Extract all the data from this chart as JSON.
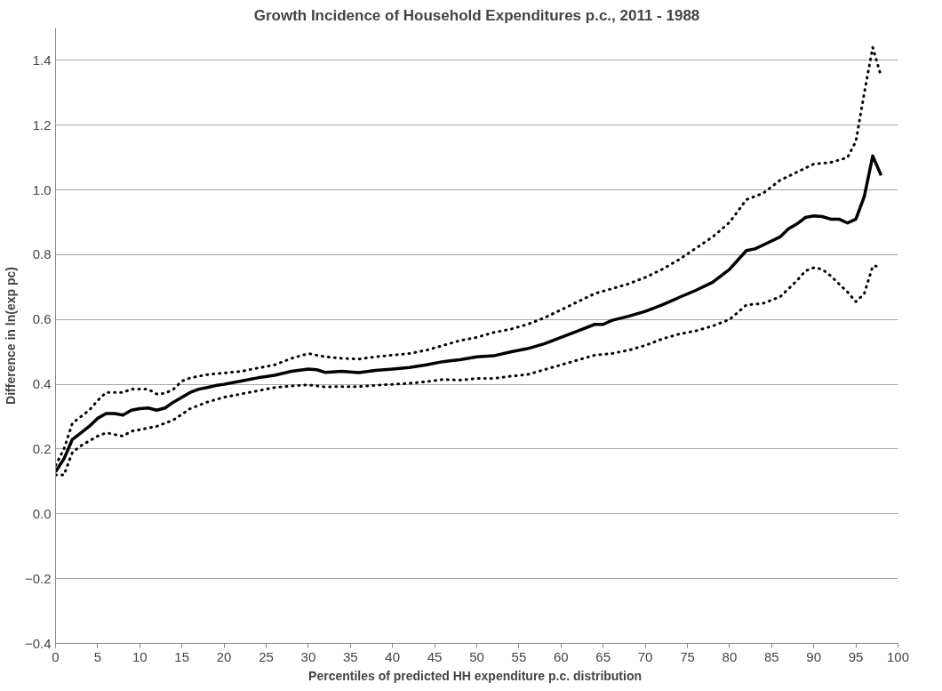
{
  "chart_data": {
    "type": "line",
    "title": "Growth Incidence of Household Expenditures p.c., 2011 - 1988",
    "xlabel": "Percentiles of  predicted HH expenditure p.c. distribution",
    "ylabel": "Difference in ln(exp pc)",
    "xlim": [
      0,
      100
    ],
    "xticks": [
      0,
      5,
      10,
      15,
      20,
      25,
      30,
      35,
      40,
      45,
      50,
      55,
      60,
      65,
      70,
      75,
      80,
      85,
      90,
      95,
      100
    ],
    "ylim": [
      -0.4,
      1.5
    ],
    "yticks": [
      -0.4,
      -0.2,
      {
        "value": 0,
        "label": "0.0"
      },
      0.2,
      0.4,
      0.6,
      0.8,
      {
        "value": 1,
        "label": "1.0"
      },
      1.2,
      1.4
    ],
    "grid": "y",
    "marker": "none",
    "series": [
      {
        "color": "#000000",
        "line_style": "dotted",
        "x": [
          0,
          1,
          2,
          3,
          4,
          5,
          6,
          7,
          8,
          9,
          10,
          11,
          12,
          13,
          14,
          15,
          16,
          18,
          20,
          22,
          24,
          26,
          28,
          30,
          31,
          32,
          34,
          36,
          38,
          40,
          42,
          44,
          46,
          48,
          50,
          52,
          54,
          56,
          58,
          60,
          62,
          64,
          66,
          68,
          70,
          72,
          74,
          76,
          78,
          80,
          82,
          84,
          86,
          88,
          90,
          92,
          94,
          95,
          96,
          97,
          98
        ],
        "values": [
          0.15,
          0.2,
          0.28,
          0.3,
          0.32,
          0.35,
          0.375,
          0.375,
          0.375,
          0.385,
          0.385,
          0.385,
          0.37,
          0.372,
          0.385,
          0.41,
          0.42,
          0.43,
          0.435,
          0.44,
          0.45,
          0.46,
          0.48,
          0.495,
          0.49,
          0.485,
          0.48,
          0.478,
          0.485,
          0.49,
          0.495,
          0.505,
          0.52,
          0.535,
          0.545,
          0.56,
          0.57,
          0.585,
          0.605,
          0.63,
          0.655,
          0.68,
          0.695,
          0.71,
          0.73,
          0.755,
          0.785,
          0.82,
          0.855,
          0.9,
          0.97,
          0.99,
          1.03,
          1.055,
          1.08,
          1.085,
          1.1,
          1.15,
          1.3,
          1.44,
          1.35
        ]
      },
      {
        "color": "#000000",
        "line_style": "solid",
        "x": [
          0,
          1,
          2,
          3,
          4,
          5,
          6,
          7,
          8,
          9,
          10,
          11,
          12,
          13,
          14,
          15,
          16,
          17,
          18,
          19,
          20,
          22,
          24,
          26,
          28,
          30,
          31,
          32,
          34,
          36,
          38,
          40,
          42,
          44,
          46,
          48,
          50,
          52,
          54,
          56,
          58,
          60,
          62,
          64,
          65,
          66,
          68,
          70,
          72,
          74,
          76,
          78,
          80,
          82,
          83,
          84,
          86,
          87,
          88,
          89,
          90,
          91,
          92,
          93,
          94,
          95,
          96,
          97,
          98
        ],
        "values": [
          0.13,
          0.17,
          0.23,
          0.25,
          0.27,
          0.295,
          0.31,
          0.31,
          0.305,
          0.32,
          0.325,
          0.327,
          0.32,
          0.327,
          0.345,
          0.36,
          0.375,
          0.385,
          0.39,
          0.396,
          0.4,
          0.41,
          0.42,
          0.428,
          0.44,
          0.447,
          0.445,
          0.437,
          0.44,
          0.436,
          0.443,
          0.447,
          0.452,
          0.46,
          0.47,
          0.476,
          0.485,
          0.488,
          0.5,
          0.51,
          0.525,
          0.545,
          0.565,
          0.585,
          0.585,
          0.597,
          0.61,
          0.625,
          0.645,
          0.668,
          0.69,
          0.715,
          0.755,
          0.813,
          0.818,
          0.83,
          0.855,
          0.88,
          0.895,
          0.915,
          0.92,
          0.918,
          0.91,
          0.91,
          0.898,
          0.91,
          0.98,
          1.105,
          1.045
        ]
      },
      {
        "color": "#000000",
        "line_style": "dotted",
        "x": [
          0,
          1,
          2,
          3,
          4,
          5,
          6,
          7,
          8,
          9,
          10,
          12,
          14,
          16,
          18,
          20,
          22,
          24,
          26,
          28,
          30,
          32,
          34,
          36,
          38,
          40,
          42,
          44,
          46,
          48,
          50,
          52,
          54,
          56,
          58,
          60,
          62,
          64,
          66,
          68,
          70,
          72,
          74,
          76,
          78,
          80,
          82,
          84,
          86,
          88,
          89,
          90,
          91,
          92,
          93,
          94,
          95,
          96,
          97,
          98
        ],
        "values": [
          0.12,
          0.12,
          0.19,
          0.21,
          0.225,
          0.24,
          0.25,
          0.245,
          0.24,
          0.255,
          0.26,
          0.27,
          0.29,
          0.325,
          0.345,
          0.36,
          0.37,
          0.38,
          0.39,
          0.395,
          0.398,
          0.392,
          0.393,
          0.393,
          0.397,
          0.4,
          0.403,
          0.408,
          0.415,
          0.413,
          0.418,
          0.418,
          0.425,
          0.43,
          0.445,
          0.46,
          0.475,
          0.49,
          0.495,
          0.505,
          0.52,
          0.54,
          0.555,
          0.565,
          0.58,
          0.6,
          0.645,
          0.65,
          0.67,
          0.72,
          0.75,
          0.76,
          0.755,
          0.735,
          0.71,
          0.685,
          0.655,
          0.68,
          0.765,
          0.765
        ]
      }
    ]
  }
}
